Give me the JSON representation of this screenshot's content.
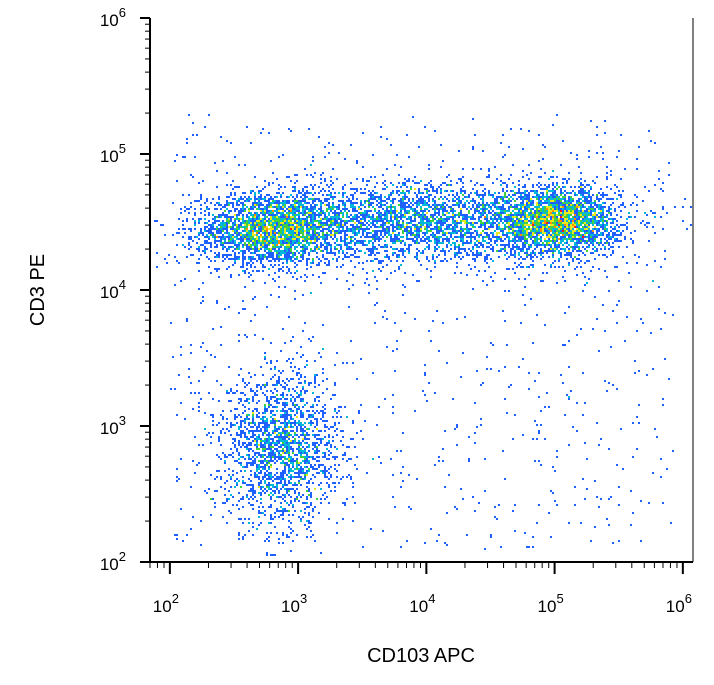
{
  "chart_data": {
    "type": "scatter",
    "title": "",
    "xlabel": "CD103 APC",
    "ylabel": "CD3 PE",
    "x_scale": "log",
    "y_scale": "log",
    "xlim": [
      70,
      1200000
    ],
    "ylim": [
      100,
      1000000
    ],
    "x_ticks": [
      {
        "value": 100,
        "base": "10",
        "exp": "2"
      },
      {
        "value": 1000,
        "base": "10",
        "exp": "3"
      },
      {
        "value": 10000,
        "base": "10",
        "exp": "4"
      },
      {
        "value": 100000,
        "base": "10",
        "exp": "5"
      },
      {
        "value": 1000000,
        "base": "10",
        "exp": "6"
      }
    ],
    "y_ticks": [
      {
        "value": 100,
        "base": "10",
        "exp": "2"
      },
      {
        "value": 1000,
        "base": "10",
        "exp": "3"
      },
      {
        "value": 10000,
        "base": "10",
        "exp": "4"
      },
      {
        "value": 100000,
        "base": "10",
        "exp": "5"
      },
      {
        "value": 1000000,
        "base": "10",
        "exp": "6"
      }
    ],
    "grid": false,
    "legend": "none",
    "color_map": [
      "#0000cc",
      "#2060ff",
      "#00b8d8",
      "#40d040",
      "#e8e820",
      "#ff8c00",
      "#ff1a1a"
    ],
    "populations": [
      {
        "center_x": 630,
        "center_y": 28000,
        "spread_log_x": 0.28,
        "spread_log_y": 0.13,
        "relative_density": 1.0
      },
      {
        "center_x": 105000,
        "center_y": 32000,
        "spread_log_x": 0.23,
        "spread_log_y": 0.12,
        "relative_density": 0.95
      },
      {
        "center_x": 10000,
        "center_y": 32000,
        "spread_log_x": 0.65,
        "spread_log_y": 0.15,
        "relative_density": 0.45
      },
      {
        "center_x": 750,
        "center_y": 700,
        "spread_log_x": 0.22,
        "spread_log_y": 0.28,
        "relative_density": 0.35
      }
    ]
  }
}
